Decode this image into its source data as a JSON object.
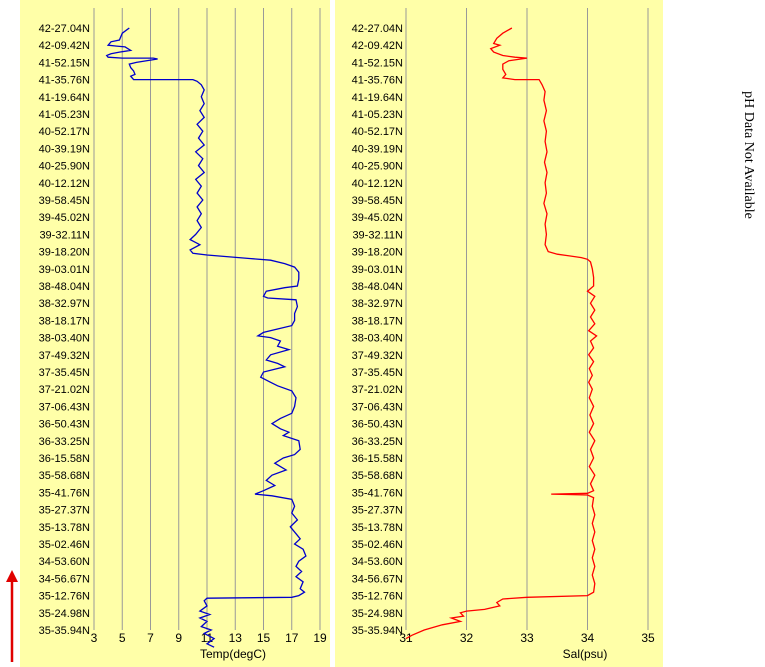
{
  "latitudes": [
    "42-27.04N",
    "42-09.42N",
    "41-52.15N",
    "41-35.76N",
    "41-19.64N",
    "41-05.23N",
    "40-52.17N",
    "40-39.19N",
    "40-25.90N",
    "40-12.12N",
    "39-58.45N",
    "39-45.02N",
    "39-32.11N",
    "39-18.20N",
    "39-03.01N",
    "38-48.04N",
    "38-32.97N",
    "38-18.17N",
    "38-03.40N",
    "37-49.32N",
    "37-35.45N",
    "37-21.02N",
    "37-06.43N",
    "36-50.43N",
    "36-33.25N",
    "36-15.58N",
    "35-58.68N",
    "35-41.76N",
    "35-27.37N",
    "35-13.78N",
    "35-02.46N",
    "34-53.60N",
    "34-56.67N",
    "35-12.76N",
    "35-24.98N",
    "35-35.94N"
  ],
  "side_note": "pH Data Not Available",
  "colors": {
    "panel_bg": "#ffffa8",
    "temp": "#0000cc",
    "sal": "#ff0000",
    "arrow": "#e00000",
    "grid": "#999999"
  },
  "chart_data": [
    {
      "type": "line",
      "xlabel": "Temp(degC)",
      "xlim": [
        3,
        19
      ],
      "xticks": [
        3,
        5,
        7,
        9,
        11,
        13,
        15,
        17,
        19
      ],
      "color": "#0000cc",
      "points": [
        [
          5.5,
          0.0
        ],
        [
          5.0,
          0.3
        ],
        [
          4.8,
          0.7
        ],
        [
          4.2,
          0.8
        ],
        [
          4.0,
          1.0
        ],
        [
          4.6,
          1.05
        ],
        [
          5.2,
          1.1
        ],
        [
          5.6,
          1.3
        ],
        [
          4.8,
          1.4
        ],
        [
          4.2,
          1.5
        ],
        [
          3.9,
          1.6
        ],
        [
          4.0,
          1.7
        ],
        [
          5.0,
          1.75
        ],
        [
          7.2,
          1.75
        ],
        [
          7.5,
          1.8
        ],
        [
          6.0,
          2.0
        ],
        [
          5.5,
          2.1
        ],
        [
          5.6,
          2.3
        ],
        [
          5.8,
          2.5
        ],
        [
          5.9,
          2.7
        ],
        [
          5.6,
          2.8
        ],
        [
          5.8,
          3.0
        ],
        [
          10.0,
          3.0
        ],
        [
          10.3,
          3.1
        ],
        [
          10.6,
          3.3
        ],
        [
          10.8,
          3.6
        ],
        [
          10.6,
          4.0
        ],
        [
          10.8,
          4.4
        ],
        [
          10.5,
          4.8
        ],
        [
          10.8,
          5.2
        ],
        [
          10.3,
          5.6
        ],
        [
          10.7,
          6.0
        ],
        [
          10.4,
          6.4
        ],
        [
          10.8,
          6.8
        ],
        [
          10.2,
          7.2
        ],
        [
          10.7,
          7.6
        ],
        [
          10.4,
          8.0
        ],
        [
          10.8,
          8.4
        ],
        [
          10.2,
          8.8
        ],
        [
          10.6,
          9.2
        ],
        [
          10.3,
          9.6
        ],
        [
          10.7,
          10.0
        ],
        [
          10.3,
          10.4
        ],
        [
          10.6,
          10.8
        ],
        [
          10.3,
          11.2
        ],
        [
          10.6,
          11.6
        ],
        [
          10.2,
          12.0
        ],
        [
          9.8,
          12.3
        ],
        [
          10.5,
          12.6
        ],
        [
          9.8,
          12.9
        ],
        [
          10.0,
          13.1
        ],
        [
          11.0,
          13.2
        ],
        [
          14.0,
          13.4
        ],
        [
          15.5,
          13.5
        ],
        [
          16.5,
          13.7
        ],
        [
          17.2,
          13.9
        ],
        [
          17.5,
          14.2
        ],
        [
          17.5,
          14.6
        ],
        [
          17.4,
          15.0
        ],
        [
          16.5,
          15.1
        ],
        [
          15.2,
          15.3
        ],
        [
          15.0,
          15.6
        ],
        [
          15.3,
          15.7
        ],
        [
          17.3,
          15.8
        ],
        [
          17.4,
          16.2
        ],
        [
          17.2,
          16.6
        ],
        [
          17.2,
          17.0
        ],
        [
          17.0,
          17.3
        ],
        [
          16.0,
          17.5
        ],
        [
          15.0,
          17.7
        ],
        [
          14.6,
          17.9
        ],
        [
          15.5,
          18.0
        ],
        [
          16.2,
          18.2
        ],
        [
          16.0,
          18.5
        ],
        [
          16.8,
          18.7
        ],
        [
          15.5,
          19.0
        ],
        [
          15.2,
          19.3
        ],
        [
          16.0,
          19.5
        ],
        [
          16.5,
          19.7
        ],
        [
          15.0,
          20.0
        ],
        [
          14.8,
          20.3
        ],
        [
          15.5,
          20.6
        ],
        [
          16.0,
          20.8
        ],
        [
          17.0,
          21.1
        ],
        [
          17.3,
          21.5
        ],
        [
          17.2,
          22.0
        ],
        [
          17.0,
          22.4
        ],
        [
          16.2,
          22.7
        ],
        [
          15.6,
          23.0
        ],
        [
          16.2,
          23.3
        ],
        [
          16.8,
          23.5
        ],
        [
          16.4,
          23.7
        ],
        [
          17.5,
          24.0
        ],
        [
          17.6,
          24.5
        ],
        [
          17.2,
          24.8
        ],
        [
          16.4,
          25.0
        ],
        [
          15.8,
          25.3
        ],
        [
          16.6,
          25.7
        ],
        [
          15.6,
          26.0
        ],
        [
          15.2,
          26.3
        ],
        [
          15.8,
          26.6
        ],
        [
          15.0,
          26.9
        ],
        [
          14.4,
          27.1
        ],
        [
          15.6,
          27.2
        ],
        [
          17.0,
          27.4
        ],
        [
          17.2,
          27.8
        ],
        [
          17.0,
          28.2
        ],
        [
          17.4,
          28.6
        ],
        [
          16.9,
          29.0
        ],
        [
          17.3,
          29.4
        ],
        [
          17.6,
          29.7
        ],
        [
          17.2,
          30.0
        ],
        [
          17.8,
          30.3
        ],
        [
          18.0,
          30.7
        ],
        [
          17.5,
          31.0
        ],
        [
          17.3,
          31.3
        ],
        [
          17.7,
          31.6
        ],
        [
          17.3,
          31.9
        ],
        [
          17.8,
          32.2
        ],
        [
          17.6,
          32.6
        ],
        [
          17.9,
          32.8
        ],
        [
          17.5,
          33.0
        ],
        [
          17.0,
          33.1
        ],
        [
          11.0,
          33.15
        ],
        [
          10.8,
          33.3
        ],
        [
          11.0,
          33.6
        ],
        [
          10.5,
          33.9
        ],
        [
          11.2,
          34.1
        ],
        [
          10.5,
          34.3
        ],
        [
          11.0,
          34.5
        ],
        [
          10.6,
          34.8
        ],
        [
          11.3,
          35.0
        ],
        [
          10.8,
          35.2
        ],
        [
          11.5,
          35.5
        ],
        [
          11.0,
          35.8
        ],
        [
          11.5,
          36.0
        ]
      ]
    },
    {
      "type": "line",
      "xlabel": "Sal(psu)",
      "xlim": [
        31,
        35
      ],
      "xticks": [
        31,
        32,
        33,
        34,
        35
      ],
      "color": "#ff0000",
      "points": [
        [
          32.75,
          0.0
        ],
        [
          32.6,
          0.3
        ],
        [
          32.5,
          0.6
        ],
        [
          32.45,
          0.9
        ],
        [
          32.55,
          1.0
        ],
        [
          32.4,
          1.2
        ],
        [
          32.45,
          1.4
        ],
        [
          32.6,
          1.6
        ],
        [
          32.8,
          1.7
        ],
        [
          33.0,
          1.75
        ],
        [
          32.7,
          1.9
        ],
        [
          32.6,
          2.1
        ],
        [
          32.6,
          2.4
        ],
        [
          32.65,
          2.7
        ],
        [
          32.6,
          2.9
        ],
        [
          32.8,
          3.0
        ],
        [
          33.2,
          3.0
        ],
        [
          33.25,
          3.3
        ],
        [
          33.3,
          3.7
        ],
        [
          33.28,
          4.2
        ],
        [
          33.32,
          4.8
        ],
        [
          33.28,
          5.4
        ],
        [
          33.32,
          6.0
        ],
        [
          33.3,
          6.6
        ],
        [
          33.33,
          7.2
        ],
        [
          33.29,
          7.8
        ],
        [
          33.33,
          8.4
        ],
        [
          33.3,
          9.0
        ],
        [
          33.32,
          9.6
        ],
        [
          33.28,
          10.2
        ],
        [
          33.33,
          10.8
        ],
        [
          33.3,
          11.4
        ],
        [
          33.32,
          12.0
        ],
        [
          33.3,
          12.6
        ],
        [
          33.35,
          13.0
        ],
        [
          33.5,
          13.15
        ],
        [
          33.7,
          13.25
        ],
        [
          33.9,
          13.35
        ],
        [
          34.0,
          13.45
        ],
        [
          34.05,
          13.6
        ],
        [
          34.08,
          14.0
        ],
        [
          34.1,
          14.5
        ],
        [
          34.1,
          15.0
        ],
        [
          34.0,
          15.3
        ],
        [
          34.12,
          15.6
        ],
        [
          34.05,
          16.0
        ],
        [
          34.12,
          16.4
        ],
        [
          34.05,
          16.8
        ],
        [
          34.12,
          17.2
        ],
        [
          34.02,
          17.6
        ],
        [
          34.15,
          17.9
        ],
        [
          34.05,
          18.2
        ],
        [
          34.1,
          18.6
        ],
        [
          34.02,
          19.0
        ],
        [
          34.1,
          19.4
        ],
        [
          34.03,
          19.8
        ],
        [
          34.08,
          20.2
        ],
        [
          34.02,
          20.6
        ],
        [
          34.08,
          21.0
        ],
        [
          34.03,
          21.5
        ],
        [
          34.1,
          22.0
        ],
        [
          34.04,
          22.5
        ],
        [
          34.1,
          23.0
        ],
        [
          34.03,
          23.5
        ],
        [
          34.12,
          24.0
        ],
        [
          34.05,
          24.5
        ],
        [
          34.1,
          25.0
        ],
        [
          34.03,
          25.5
        ],
        [
          34.12,
          26.0
        ],
        [
          34.05,
          26.5
        ],
        [
          34.1,
          26.9
        ],
        [
          34.0,
          27.05
        ],
        [
          33.4,
          27.1
        ],
        [
          34.0,
          27.15
        ],
        [
          34.1,
          27.3
        ],
        [
          34.08,
          27.8
        ],
        [
          34.12,
          28.3
        ],
        [
          34.08,
          28.8
        ],
        [
          34.12,
          29.3
        ],
        [
          34.08,
          29.8
        ],
        [
          34.12,
          30.3
        ],
        [
          34.08,
          30.8
        ],
        [
          34.12,
          31.3
        ],
        [
          34.08,
          31.8
        ],
        [
          34.12,
          32.3
        ],
        [
          34.1,
          32.8
        ],
        [
          34.0,
          33.0
        ],
        [
          33.0,
          33.1
        ],
        [
          32.6,
          33.2
        ],
        [
          32.5,
          33.4
        ],
        [
          32.55,
          33.6
        ],
        [
          32.3,
          33.8
        ],
        [
          32.0,
          33.9
        ],
        [
          31.9,
          34.0
        ],
        [
          31.95,
          34.2
        ],
        [
          31.75,
          34.3
        ],
        [
          31.9,
          34.5
        ],
        [
          31.6,
          34.7
        ],
        [
          31.3,
          35.0
        ],
        [
          31.1,
          35.3
        ],
        [
          31.0,
          35.5
        ]
      ]
    }
  ]
}
